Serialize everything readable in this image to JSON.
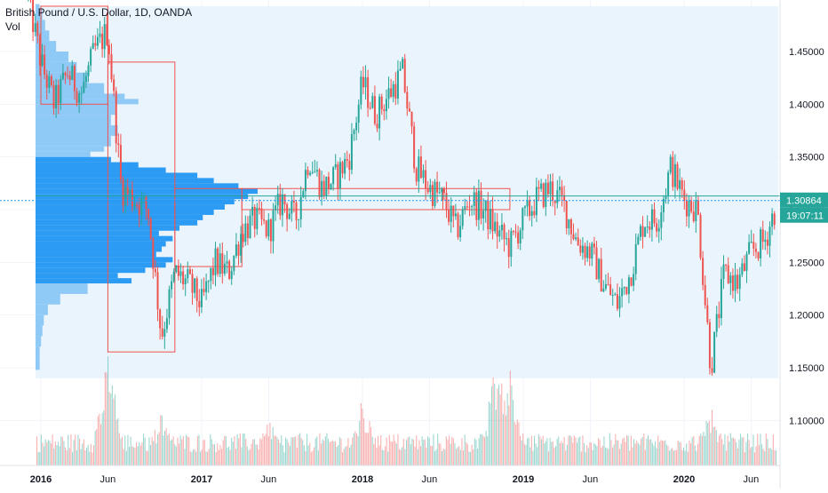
{
  "legend": {
    "symbol": "British Pound / U.S. Dollar, 1D, OANDA",
    "volume_label": "Vol"
  },
  "price_tags": {
    "last_price": "1.30864",
    "countdown": "19:07:11"
  },
  "colors": {
    "up": "#26a69a",
    "down": "#ef5350",
    "profile_main": "#2196f3",
    "profile_light": "#7fc1f5",
    "profile_bg": "#eaf4fc",
    "range_box": "#ef5350",
    "last_price_line": "#26a69a",
    "axis_text": "#131722",
    "grid": "#f0f3fa"
  },
  "chart_data": {
    "type": "candlestick",
    "title": "British Pound / U.S. Dollar, 1D, OANDA",
    "y_axis": {
      "ticks": [
        "1.45000",
        "1.40000",
        "1.35000",
        "1.30000",
        "1.25000",
        "1.20000",
        "1.15000",
        "1.10000"
      ],
      "tick_values": [
        1.45,
        1.4,
        1.35,
        1.3,
        1.25,
        1.2,
        1.15,
        1.1
      ],
      "ylim": [
        1.054,
        1.493
      ]
    },
    "x_axis": {
      "ticks": [
        "2016",
        "Jun",
        "2017",
        "Jun",
        "2018",
        "Jun",
        "2019",
        "Jun",
        "2020",
        "Jun"
      ],
      "tick_dates": [
        "2016-01",
        "2016-06",
        "2017-01",
        "2017-06",
        "2018-01",
        "2018-06",
        "2019-01",
        "2019-06",
        "2020-01",
        "2020-06"
      ],
      "bold": [
        "2016",
        "2017",
        "2018",
        "2019",
        "2020"
      ],
      "range": [
        "2015-12",
        "2020-08"
      ]
    },
    "price_path": [
      [
        "2015-12",
        1.505
      ],
      [
        "2016-01",
        1.44
      ],
      [
        "2016-02",
        1.4
      ],
      [
        "2016-03",
        1.43
      ],
      [
        "2016-04",
        1.41
      ],
      [
        "2016-05",
        1.45
      ],
      [
        "2016-06",
        1.47
      ],
      [
        "2016-07",
        1.32
      ],
      [
        "2016-08",
        1.31
      ],
      [
        "2016-09",
        1.3
      ],
      [
        "2016-10",
        1.18
      ],
      [
        "2016-11",
        1.24
      ],
      [
        "2016-12",
        1.23
      ],
      [
        "2017-01",
        1.21
      ],
      [
        "2017-02",
        1.25
      ],
      [
        "2017-03",
        1.24
      ],
      [
        "2017-04",
        1.28
      ],
      [
        "2017-05",
        1.29
      ],
      [
        "2017-06",
        1.28
      ],
      [
        "2017-07",
        1.31
      ],
      [
        "2017-08",
        1.29
      ],
      [
        "2017-09",
        1.35
      ],
      [
        "2017-10",
        1.32
      ],
      [
        "2017-11",
        1.33
      ],
      [
        "2017-12",
        1.35
      ],
      [
        "2018-01",
        1.42
      ],
      [
        "2018-02",
        1.39
      ],
      [
        "2018-03",
        1.41
      ],
      [
        "2018-04",
        1.43
      ],
      [
        "2018-05",
        1.34
      ],
      [
        "2018-06",
        1.32
      ],
      [
        "2018-07",
        1.31
      ],
      [
        "2018-08",
        1.28
      ],
      [
        "2018-09",
        1.31
      ],
      [
        "2018-10",
        1.3
      ],
      [
        "2018-11",
        1.28
      ],
      [
        "2018-12",
        1.265
      ],
      [
        "2019-01",
        1.29
      ],
      [
        "2019-02",
        1.31
      ],
      [
        "2019-03",
        1.32
      ],
      [
        "2019-04",
        1.305
      ],
      [
        "2019-05",
        1.27
      ],
      [
        "2019-06",
        1.26
      ],
      [
        "2019-07",
        1.23
      ],
      [
        "2019-08",
        1.21
      ],
      [
        "2019-09",
        1.24
      ],
      [
        "2019-10",
        1.29
      ],
      [
        "2019-11",
        1.29
      ],
      [
        "2019-12",
        1.34
      ],
      [
        "2020-01",
        1.31
      ],
      [
        "2020-02",
        1.3
      ],
      [
        "2020-03",
        1.15
      ],
      [
        "2020-04",
        1.24
      ],
      [
        "2020-05",
        1.23
      ],
      [
        "2020-06",
        1.26
      ],
      [
        "2020-07",
        1.27
      ],
      [
        "2020-08",
        1.309
      ]
    ],
    "last_price": 1.30864,
    "poc_price": 1.313,
    "volume_profile_range": [
      1.14,
      1.493
    ],
    "volume_profile_levels": [
      [
        1.148,
        0.03
      ],
      [
        1.16,
        0.03
      ],
      [
        1.17,
        0.04
      ],
      [
        1.18,
        0.05
      ],
      [
        1.19,
        0.06
      ],
      [
        1.2,
        0.09
      ],
      [
        1.21,
        0.18
      ],
      [
        1.22,
        0.38
      ],
      [
        1.23,
        0.7
      ],
      [
        1.235,
        0.6
      ],
      [
        1.24,
        0.8
      ],
      [
        1.245,
        0.95
      ],
      [
        1.25,
        1.0
      ],
      [
        1.255,
        0.88
      ],
      [
        1.26,
        0.92
      ],
      [
        1.265,
        0.95
      ],
      [
        1.27,
        1.0
      ],
      [
        1.275,
        0.9
      ],
      [
        1.28,
        1.05
      ],
      [
        1.285,
        1.18
      ],
      [
        1.29,
        1.22
      ],
      [
        1.295,
        1.3
      ],
      [
        1.3,
        1.38
      ],
      [
        1.305,
        1.45
      ],
      [
        1.31,
        1.55
      ],
      [
        1.315,
        1.62
      ],
      [
        1.32,
        1.48
      ],
      [
        1.325,
        1.3
      ],
      [
        1.33,
        1.18
      ],
      [
        1.335,
        0.95
      ],
      [
        1.34,
        0.75
      ],
      [
        1.345,
        0.55
      ],
      [
        1.35,
        0.4
      ],
      [
        1.355,
        0.5
      ],
      [
        1.36,
        0.55
      ],
      [
        1.37,
        0.6
      ],
      [
        1.38,
        0.55
      ],
      [
        1.39,
        0.58
      ],
      [
        1.4,
        0.75
      ],
      [
        1.405,
        0.65
      ],
      [
        1.41,
        0.5
      ],
      [
        1.42,
        0.38
      ],
      [
        1.43,
        0.3
      ],
      [
        1.44,
        0.24
      ],
      [
        1.45,
        0.15
      ],
      [
        1.46,
        0.1
      ],
      [
        1.47,
        0.07
      ],
      [
        1.48,
        0.05
      ],
      [
        1.49,
        0.03
      ]
    ],
    "range_boxes": [
      {
        "start": "2016-01",
        "end": "2016-06",
        "low": 1.4,
        "high": 1.493
      },
      {
        "start": "2016-06",
        "end": "2016-11",
        "low": 1.165,
        "high": 1.44
      },
      {
        "start": "2016-11",
        "end": "2017-04",
        "low": 1.246,
        "high": 1.32
      },
      {
        "start": "2017-04",
        "end": "2018-07",
        "low": 1.3,
        "high": 1.32
      },
      {
        "start": "2018-07",
        "end": "2018-12",
        "low": 1.3,
        "high": 1.32
      }
    ],
    "volume_series": {
      "name": "Vol",
      "scale": "relative",
      "spikes": [
        [
          "2016-06",
          1.0
        ],
        [
          "2016-10",
          0.55
        ],
        [
          "2017-06",
          0.45
        ],
        [
          "2018-01",
          0.6
        ],
        [
          "2018-11",
          0.95
        ],
        [
          "2018-12",
          0.85
        ],
        [
          "2020-03",
          0.55
        ]
      ]
    },
    "grid": true
  }
}
